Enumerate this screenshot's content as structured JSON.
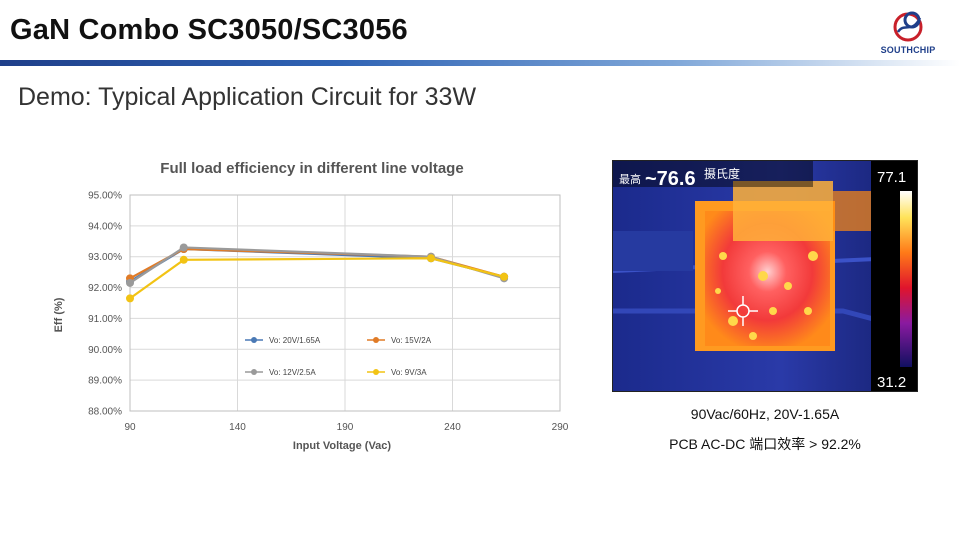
{
  "header": {
    "title": "GaN Combo SC3050/SC3056",
    "logo_text": "SOUTHCHIP"
  },
  "subtitle": "Demo: Typical Application Circuit for 33W",
  "chart_data": {
    "type": "line",
    "title": "Full load efficiency in different line voltage",
    "xlabel": "Input Voltage (Vac)",
    "ylabel": "Eff (%)",
    "xlim": [
      90,
      290
    ],
    "ylim": [
      88,
      95
    ],
    "x_ticks": [
      "90",
      "140",
      "190",
      "240",
      "290"
    ],
    "y_ticks": [
      "88.00%",
      "89.00%",
      "90.00%",
      "91.00%",
      "92.00%",
      "93.00%",
      "94.00%",
      "95.00%"
    ],
    "grid": true,
    "series": [
      {
        "name": "Vo: 20V/1.65A",
        "color": "#4a79b5",
        "x": [
          90,
          115,
          230,
          264
        ],
        "y": [
          92.2,
          93.25,
          92.95,
          92.35
        ]
      },
      {
        "name": "Vo: 15V/2A",
        "color": "#e07b27",
        "x": [
          90,
          115,
          230,
          264
        ],
        "y": [
          92.3,
          93.25,
          93.0,
          92.35
        ]
      },
      {
        "name": "Vo: 12V/2.5A",
        "color": "#9a9a9a",
        "x": [
          90,
          115,
          230,
          264
        ],
        "y": [
          92.15,
          93.3,
          93.0,
          92.3
        ]
      },
      {
        "name": "Vo: 9V/3A",
        "color": "#f2c314",
        "x": [
          90,
          115,
          230,
          264
        ],
        "y": [
          91.65,
          92.9,
          92.95,
          92.35
        ]
      }
    ]
  },
  "thermal": {
    "max_label": "最高",
    "max_value": "~76.6",
    "unit": "摄氏度",
    "scale_max": "77.1",
    "scale_min": "31.2"
  },
  "captions": {
    "line1": "90Vac/60Hz, 20V-1.65A",
    "line2": "PCB AC-DC 端口效率 > 92.2%"
  }
}
